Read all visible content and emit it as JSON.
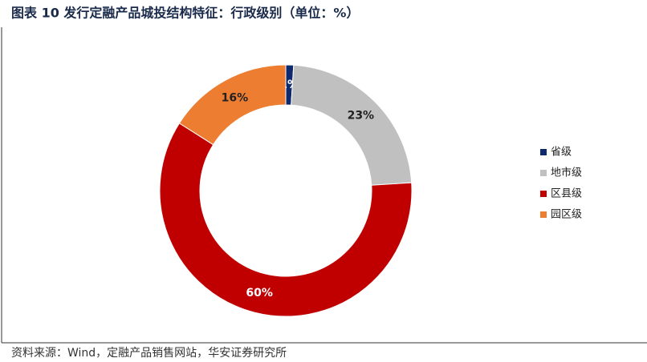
{
  "chart_data": {
    "type": "pie",
    "title": "图表 10 发行定融产品城投结构特征：行政级别（单位：%）",
    "source": "资料来源：Wind，定融产品销售网站，华安证券研究所",
    "categories": [
      "省级",
      "地市级",
      "区县级",
      "园区级"
    ],
    "values": [
      1,
      23,
      60,
      16
    ],
    "value_labels": [
      "1%",
      "23%",
      "60%",
      "16%"
    ],
    "colors": [
      "#0e2a6e",
      "#c0c0c0",
      "#c00000",
      "#ed7d31"
    ],
    "donut": true,
    "legend": "right"
  }
}
